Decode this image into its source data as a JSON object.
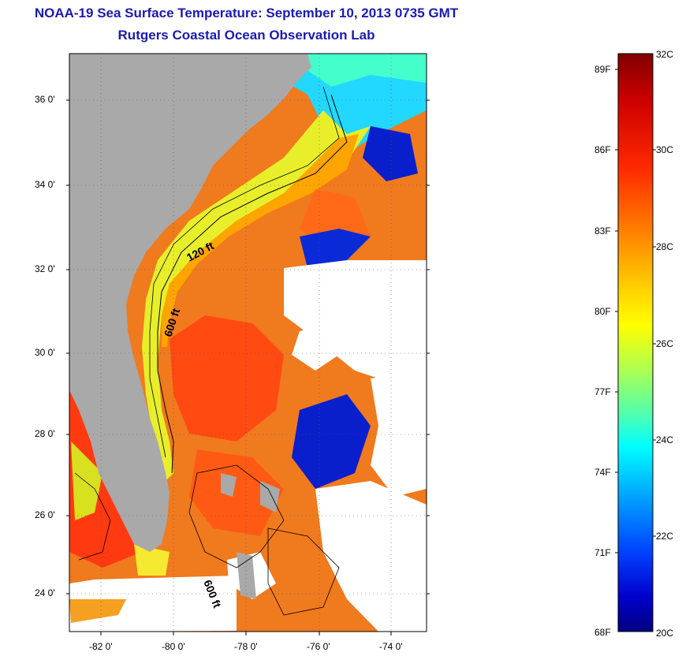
{
  "header": {
    "title_line1": "NOAA-19 Sea Surface Temperature:  September 10, 2013 0735 GMT",
    "title_line2": "Rutgers Coastal Ocean Observation Lab"
  },
  "map": {
    "y_ticks": [
      "36 0'",
      "34 0'",
      "32 0'",
      "30 0'",
      "28 0'",
      "26 0'",
      "24 0'"
    ],
    "x_ticks": [
      "-82 0'",
      "-80 0'",
      "-78 0'",
      "-76 0'",
      "-74 0'"
    ],
    "contour_labels": [
      "120 ft",
      "600 ft",
      "600 ft"
    ],
    "colors": {
      "land": "#a9a9a9",
      "cloud": "#ffffff"
    }
  },
  "colorbar": {
    "f_labels": [
      "89F",
      "86F",
      "83F",
      "80F",
      "77F",
      "74F",
      "71F",
      "68F"
    ],
    "c_labels": [
      "32C",
      "30C",
      "28C",
      "26C",
      "24C",
      "22C",
      "20C"
    ],
    "colors": [
      "#800000",
      "#d00000",
      "#ff3300",
      "#ff8800",
      "#ffcc00",
      "#ffff00",
      "#aaff55",
      "#55ffaa",
      "#00ffff",
      "#0099ff",
      "#0033ff",
      "#0000bb",
      "#000080"
    ]
  }
}
